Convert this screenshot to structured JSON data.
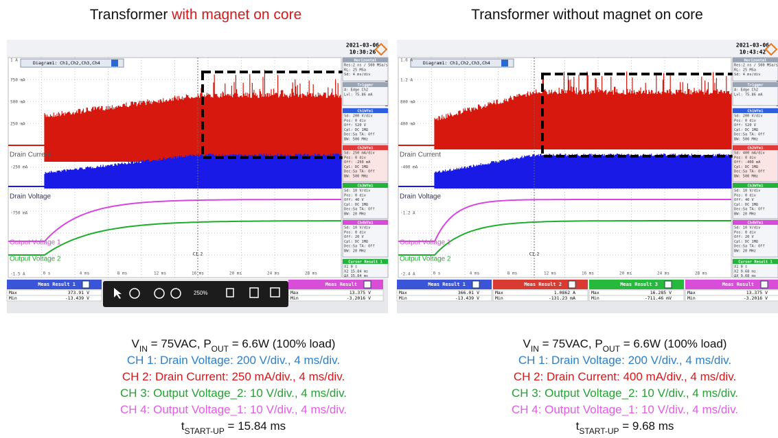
{
  "panels": [
    {
      "title": [
        "Transformer ",
        "with magnet on core"
      ],
      "scope": {
        "date": "2021-03-06",
        "time": "10:30:26",
        "diagram": "Diagram1: Ch1,Ch2,Ch3,Ch4",
        "y_labels": [
          "1 A",
          "750 mA",
          "500 mA",
          "250 mA",
          "-250 mA",
          "-750 mA",
          "-1.5 A"
        ],
        "x_labels": [
          "0 s",
          "4 ms",
          "8 ms",
          "12 ms",
          "16 ms",
          "20 ms",
          "24 ms",
          "28 ms"
        ],
        "traces": [
          "Drain Current",
          "Drain Voltage",
          "Output Voltage 1",
          "Output Voltage 2"
        ],
        "cursor": "C1.2",
        "side": [
          {
            "header": "Horizontal",
            "lines": [
              "Res:2 ns / 500 MSa/s",
              "RL: 25 MSa",
              "Sd: 4 ms/div"
            ]
          },
          {
            "header": "Trigger",
            "lines": [
              "A: Edge Ch2",
              "Lvl: 75.86 mA"
            ]
          },
          {
            "header": "Ch1Wfm1",
            "lines": [
              "Sd: 200 V/div",
              "Pos: 0 div",
              "Off: 520 V",
              "Cpl: DC 1MΩ",
              "Dec:Sa TA: Off",
              "BW: 500 MHz"
            ]
          },
          {
            "header": "Ch2Wfm1",
            "lines": [
              "Sd: 250 mA/div",
              "Pos: 0 div",
              "Off: -250 mA",
              "Cpl: DC 1MΩ",
              "Dec:Sa TA: Off",
              "BW: 500 MHz"
            ]
          },
          {
            "header": "Ch3Wfm1",
            "lines": [
              "Sd: 10 V/div",
              "Pos: 0 div",
              "Off: 40 V",
              "Cpl: DC 1MΩ",
              "Dec:Sa TA: Off",
              "BW: 20 MHz"
            ]
          },
          {
            "header": "Ch4Wfm1",
            "lines": [
              "Sd: 10 V/div",
              "Pos: 0 div",
              "Off: 20 V",
              "Cpl: DC 1MΩ",
              "Dec:Sa TA: Off",
              "BW: 20 MHz"
            ]
          },
          {
            "header": "Cursor Result 1",
            "lines": [
              "X1 0 s",
              "X2 15.84 ms",
              "ΔX 15.84 ms"
            ]
          }
        ],
        "meas": [
          {
            "header": "Meas Result 1",
            "rows": [
              [
                "Max",
                "373.91 V"
              ],
              [
                "Min",
                "-13.439 V"
              ]
            ]
          },
          {
            "header": "Meas Result",
            "rows": [
              [
                "Max",
                "13.375 V"
              ],
              [
                "Min",
                "-3.2016 V"
              ]
            ]
          }
        ],
        "zoom": "250%"
      },
      "caption": [
        [
          "V",
          "IN",
          " = 75VAC, P",
          "OUT",
          " = 6.6W (100% load)"
        ],
        [
          "CH 1: Drain Voltage: 200 V/div., 4 ms/div."
        ],
        [
          "CH 2: Drain Current: 250 mA/div., 4 ms/div."
        ],
        [
          "CH 3: Output Voltage_2: 10 V/div., 4 ms/div."
        ],
        [
          "CH 4: Output Voltage_1: 10 V/div., 4 ms/div."
        ],
        [
          "t",
          "START-UP",
          " = 15.84 ms"
        ]
      ]
    },
    {
      "title": [
        "Transformer without magnet on core"
      ],
      "scope": {
        "date": "2021-03-06",
        "time": "10:43:42",
        "diagram": "Diagram1: Ch1,Ch2,Ch3,Ch4",
        "y_labels": [
          "1.6 A",
          "1.2 A",
          "800 mA",
          "400 mA",
          "-400 mA",
          "-1.2 A",
          "-2.4 A"
        ],
        "x_labels": [
          "0 s",
          "4 ms",
          "8 ms",
          "12 ms",
          "16 ms",
          "20 ms",
          "24 ms",
          "28 ms"
        ],
        "traces": [
          "Drain Current",
          "Drain Voltage",
          "Output Voltage 1",
          "Output Voltage 2"
        ],
        "cursor": "C1.2",
        "side": [
          {
            "header": "Horizontal",
            "lines": [
              "Res:2 ns / 500 MSa/s",
              "RL: 25 MSa",
              "Sd: 4 ms/div"
            ]
          },
          {
            "header": "Trigger",
            "lines": [
              "A: Edge Ch2",
              "Lvl: 75.86 mA"
            ]
          },
          {
            "header": "Ch1Wfm1",
            "lines": [
              "Sd: 200 V/div",
              "Pos: 0 div",
              "Off: 520 V",
              "Cpl: DC 1MΩ",
              "Dec:Sa TA: Off",
              "BW: 500 MHz"
            ]
          },
          {
            "header": "Ch2Wfm1",
            "lines": [
              "Sd: 400 mA/div",
              "Pos: 0 div",
              "Off: -400 mA",
              "Cpl: DC 1MΩ",
              "Dec:Sa TA: Off",
              "BW: 500 MHz"
            ]
          },
          {
            "header": "Ch3Wfm1",
            "lines": [
              "Sd: 10 V/div",
              "Pos: 0 div",
              "Off: 40 V",
              "Cpl: DC 1MΩ",
              "Dec:Sa TA: Off",
              "BW: 20 MHz"
            ]
          },
          {
            "header": "Ch4Wfm1",
            "lines": [
              "Sd: 10 V/div",
              "Pos: 0 div",
              "Off: 20 V",
              "Cpl: DC 1MΩ",
              "Dec:Sa TA: Off",
              "BW: 20 MHz"
            ]
          },
          {
            "header": "Cursor Result 1",
            "lines": [
              "X1 0 s",
              "X2 9.68 ms",
              "ΔX 9.68 ms"
            ]
          }
        ],
        "meas": [
          {
            "header": "Meas Result 1",
            "rows": [
              [
                "Max",
                "366.01 V"
              ],
              [
                "Min",
                "-13.439 V"
              ]
            ]
          },
          {
            "header": "Meas Result 2",
            "rows": [
              [
                "Max",
                "1.0862 A"
              ],
              [
                "Min",
                "-131.23 mA"
              ]
            ]
          },
          {
            "header": "Meas Result 3",
            "rows": [
              [
                "Max",
                "16.285 V"
              ],
              [
                "Min",
                "-711.46 mV"
              ]
            ]
          },
          {
            "header": "Meas Result",
            "rows": [
              [
                "Max",
                "13.375 V"
              ],
              [
                "Min",
                "-3.2016 V"
              ]
            ]
          }
        ]
      },
      "caption": [
        [
          "V",
          "IN",
          " = 75VAC, P",
          "OUT",
          " = 6.6W (100% load)"
        ],
        [
          "CH 1: Drain Voltage: 200 V/div., 4 ms/div."
        ],
        [
          "CH 2: Drain Current: 400 mA/div., 4 ms/div."
        ],
        [
          "CH 3: Output Voltage_2: 10 V/div., 4 ms/div."
        ],
        [
          "CH 4: Output Voltage_1: 10 V/div., 4 ms/div."
        ],
        [
          "t",
          "START-UP",
          " = 9.68 ms"
        ]
      ]
    }
  ]
}
